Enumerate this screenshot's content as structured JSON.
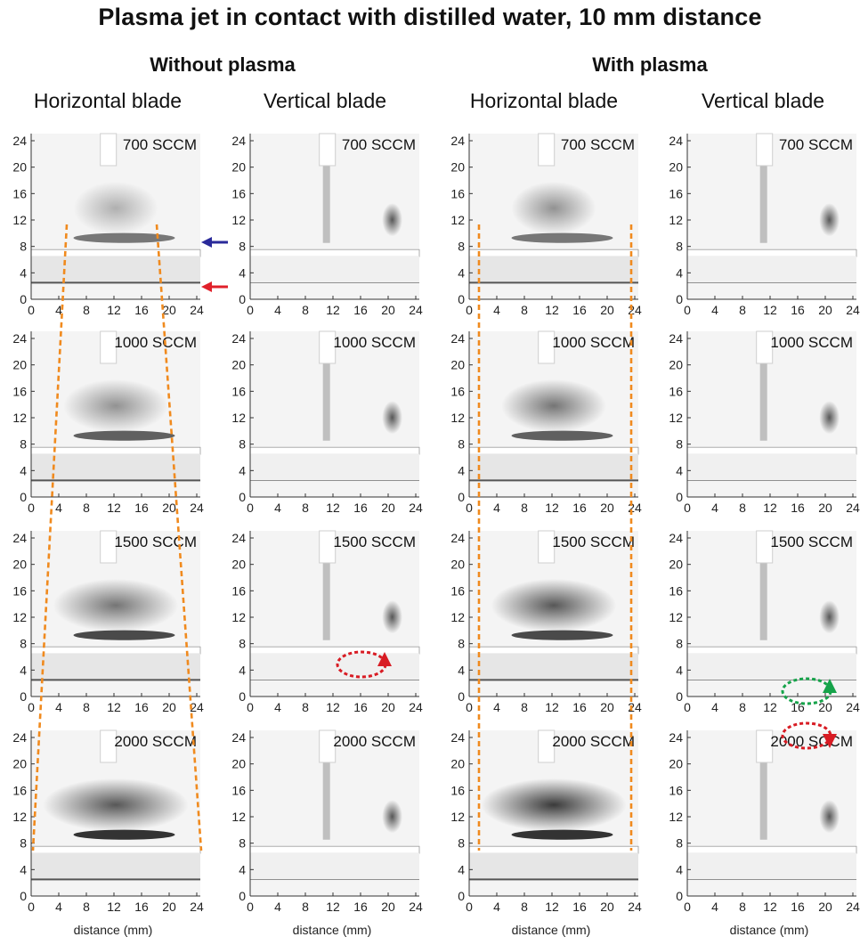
{
  "title": "Plasma jet in contact with distilled water, 10 mm distance",
  "groups": [
    {
      "label": "Without plasma"
    },
    {
      "label": "With plasma"
    }
  ],
  "columns": [
    {
      "label": "Horizontal blade"
    },
    {
      "label": "Vertical blade"
    },
    {
      "label": "Horizontal blade"
    },
    {
      "label": "Vertical blade"
    }
  ],
  "rows": [
    {
      "flow": "700 SCCM"
    },
    {
      "flow": "1000 SCCM"
    },
    {
      "flow": "1500 SCCM"
    },
    {
      "flow": "2000 SCCM"
    }
  ],
  "axes": {
    "xticks": [
      "0",
      "4",
      "8",
      "12",
      "16",
      "20",
      "24"
    ],
    "yticks": [
      "0",
      "4",
      "8",
      "12",
      "16",
      "20",
      "24"
    ],
    "xlabel": "distance (mm)"
  },
  "colors": {
    "dashed_lines": "#f08a1e",
    "blue_arrow": "#2a2a9a",
    "red_arrow": "#e0202a",
    "red_loop": "#d81c24",
    "green_loop": "#16a34a"
  }
}
